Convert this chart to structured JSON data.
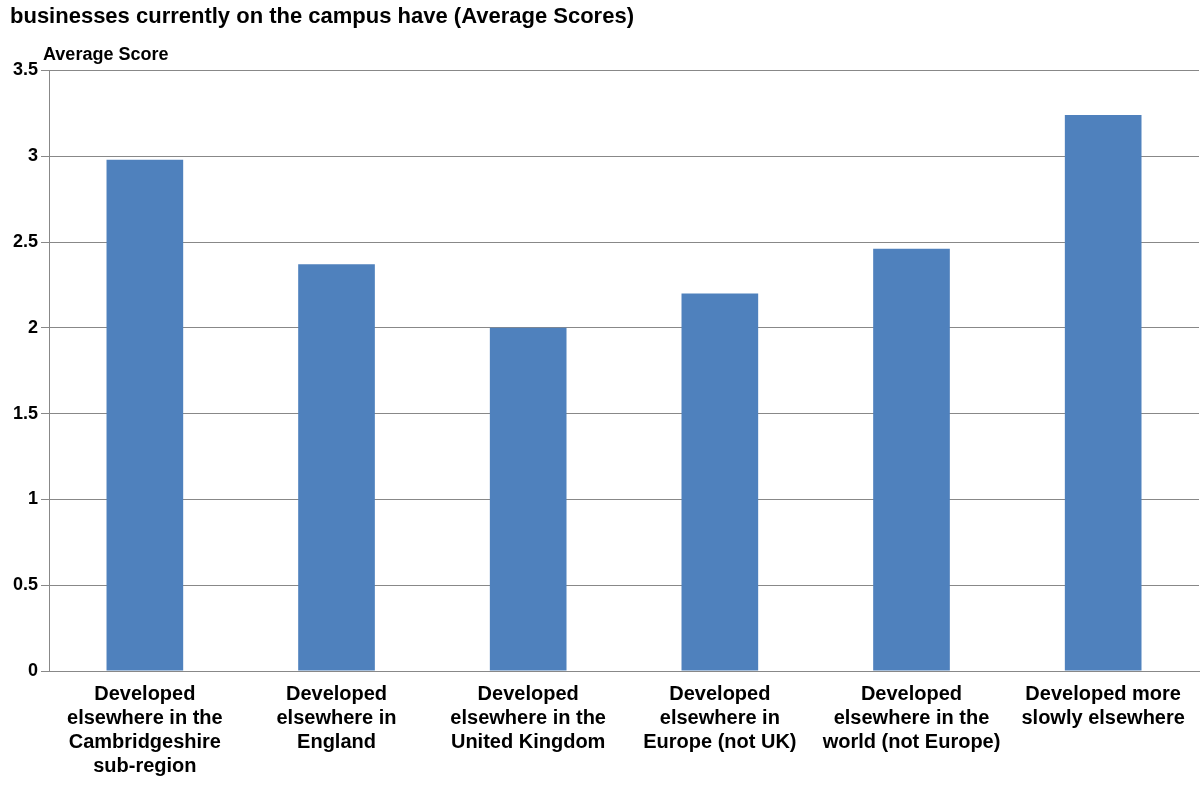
{
  "chart_data": {
    "type": "bar",
    "title": "businesses currently on the campus have (Average Scores)",
    "ylabel": "Average Score",
    "categories": [
      "Developed elsewhere in the Cambridgeshire sub-region",
      "Developed elsewhere in England",
      "Developed elsewhere in the United Kingdom",
      "Developed elsewhere in Europe (not UK)",
      "Developed elsewhere in the world (not Europe)",
      "Developed more slowly elsewhere"
    ],
    "values": [
      2.98,
      2.37,
      2.0,
      2.2,
      2.46,
      3.24
    ],
    "color": "#4f81bd",
    "ylim": [
      0,
      3.5
    ],
    "yticks": [
      0,
      0.5,
      1,
      1.5,
      2,
      2.5,
      3,
      3.5
    ],
    "grid": "y",
    "legend": false
  }
}
